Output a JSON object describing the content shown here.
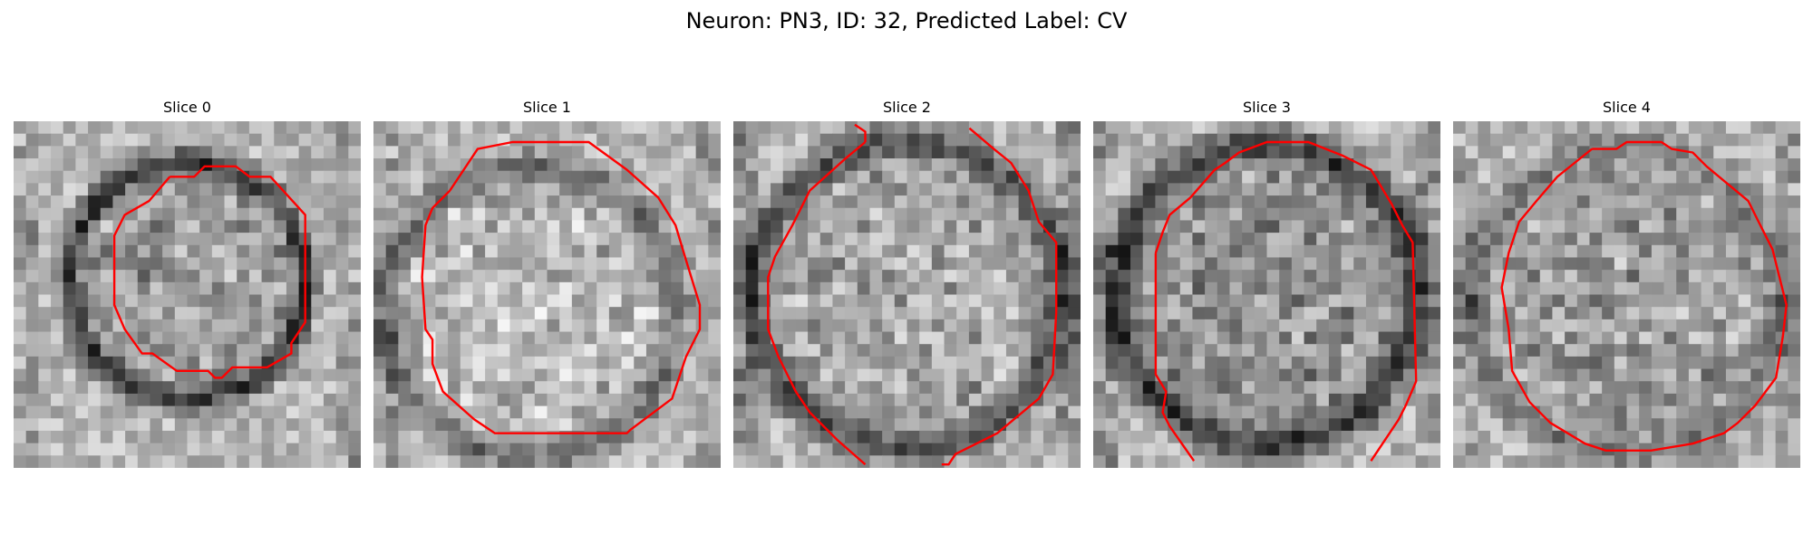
{
  "figure": {
    "title": "Neuron: PN3, ID: 32, Predicted Label: CV"
  },
  "colors": {
    "contour": "#ff0000",
    "background": "#ffffff"
  },
  "slices": [
    {
      "title": "Slice 0"
    },
    {
      "title": "Slice 1"
    },
    {
      "title": "Slice 2"
    },
    {
      "title": "Slice 3"
    },
    {
      "title": "Slice 4"
    }
  ]
}
